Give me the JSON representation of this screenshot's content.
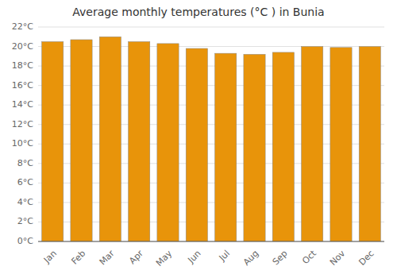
{
  "chart_data": {
    "type": "bar",
    "title": "Average monthly temperatures (°C ) in Bunia",
    "categories": [
      "Jan",
      "Feb",
      "Mar",
      "Apr",
      "May",
      "Jun",
      "Jul",
      "Aug",
      "Sep",
      "Oct",
      "Nov",
      "Dec"
    ],
    "values": [
      20.5,
      20.7,
      21.0,
      20.5,
      20.3,
      19.8,
      19.3,
      19.2,
      19.4,
      20.0,
      19.9,
      20.0
    ],
    "color": "#E8940A",
    "ylim": [
      0,
      22
    ],
    "yticks": [
      {
        "value": 0,
        "label": "0°C"
      },
      {
        "value": 2,
        "label": "2°C"
      },
      {
        "value": 4,
        "label": "4°C"
      },
      {
        "value": 6,
        "label": "6°C"
      },
      {
        "value": 8,
        "label": "8°C"
      },
      {
        "value": 10,
        "label": "10°C"
      },
      {
        "value": 12,
        "label": "12°C"
      },
      {
        "value": 14,
        "label": "14°C"
      },
      {
        "value": 16,
        "label": "16°C"
      },
      {
        "value": 18,
        "label": "18°C"
      },
      {
        "value": 20,
        "label": "20°C"
      },
      {
        "value": 22,
        "label": "22°C"
      }
    ],
    "grid": true
  }
}
